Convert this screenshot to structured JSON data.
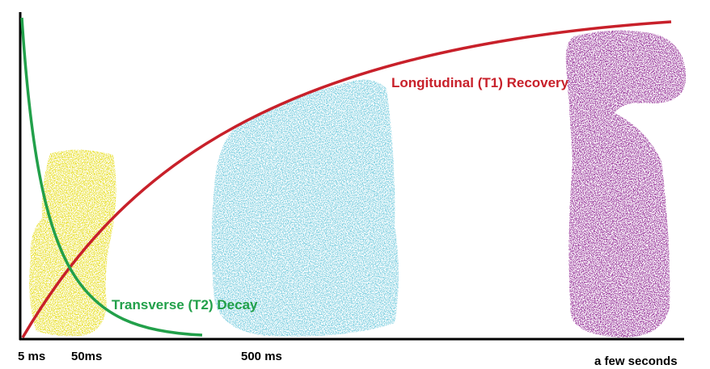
{
  "curves": [
    {
      "label": "Longitudinal (T1) Recovery"
    },
    {
      "label": "Transverse (T2) Decay"
    }
  ],
  "axis_labels": [
    "5 ms",
    "50ms",
    "500 ms",
    "a few seconds"
  ]
}
